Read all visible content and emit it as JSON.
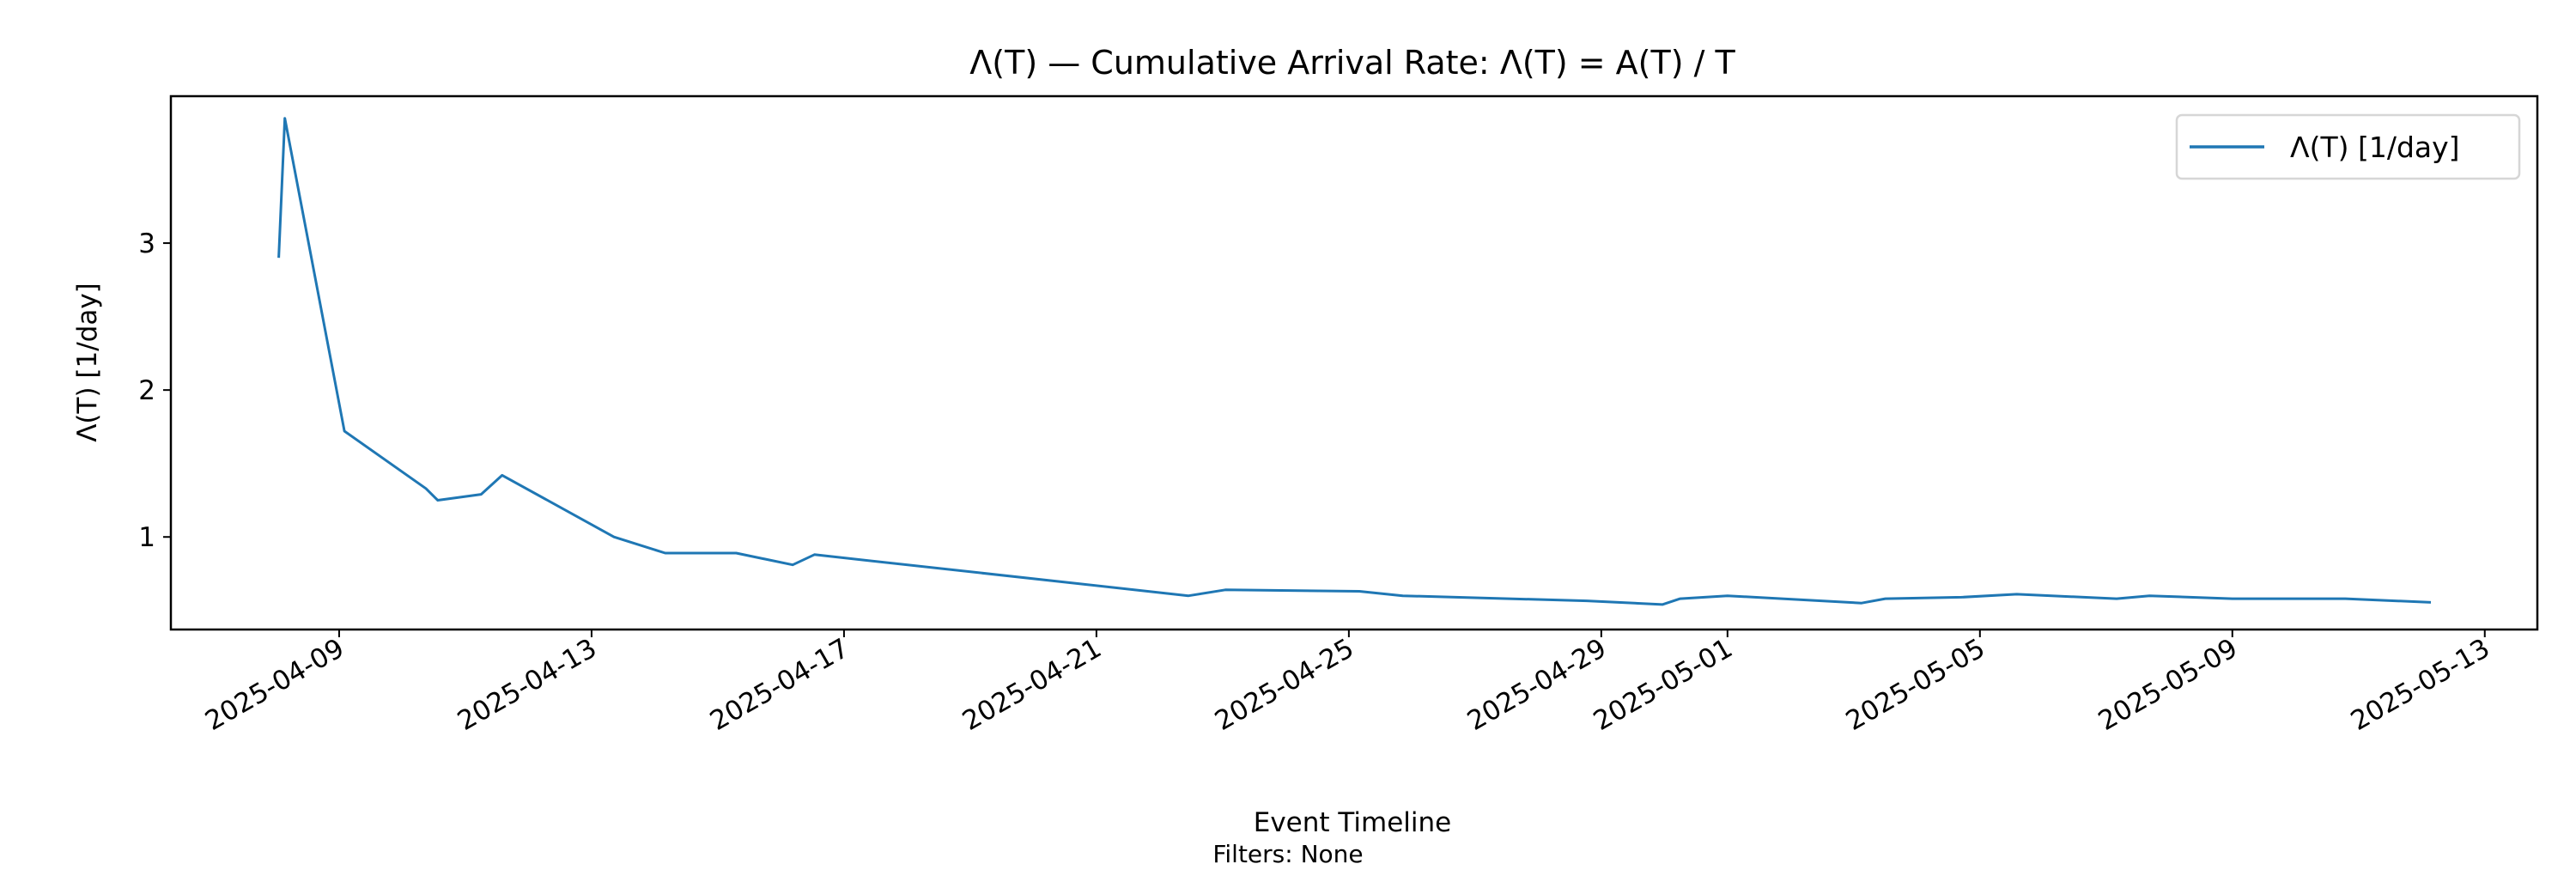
{
  "chart_data": {
    "type": "line",
    "title": "Λ(T) — Cumulative Arrival Rate: Λ(T) = A(T) / T",
    "xlabel": "Event Timeline",
    "ylabel": "Λ(T) [1/day]",
    "footnote": "Filters: None",
    "xlim": [
      "2025-04-06T08:00",
      "2025-05-13T20:00"
    ],
    "ylim": [
      0.37,
      4.0
    ],
    "grid": false,
    "legend_placement": "top-right",
    "x_ticks": [
      "2025-04-09",
      "2025-04-13",
      "2025-04-17",
      "2025-04-21",
      "2025-04-25",
      "2025-04-29",
      "2025-05-01",
      "2025-05-05",
      "2025-05-09",
      "2025-05-13"
    ],
    "y_ticks": [
      1,
      2,
      3
    ],
    "series": [
      {
        "name": "Λ(T) [1/day]",
        "color": "#1f77b4",
        "x": [
          "2025-04-08T01:00",
          "2025-04-08T03:20",
          "2025-04-09T02:00",
          "2025-04-10T09:00",
          "2025-04-10T13:30",
          "2025-04-11T06:00",
          "2025-04-11T14:00",
          "2025-04-13T08:30",
          "2025-04-14T04:00",
          "2025-04-15T07:00",
          "2025-04-16T04:30",
          "2025-04-16T12:45",
          "2025-04-22T11:00",
          "2025-04-23T01:00",
          "2025-04-25T04:00",
          "2025-04-25T20:30",
          "2025-04-28T18:30",
          "2025-04-29T23:15",
          "2025-04-30T06:00",
          "2025-05-01T00:00",
          "2025-05-03T03:00",
          "2025-05-03T12:00",
          "2025-05-04T17:00",
          "2025-05-05T14:00",
          "2025-05-07T04:00",
          "2025-05-07T16:30",
          "2025-05-09T00:00",
          "2025-05-10T19:00",
          "2025-05-12T03:30"
        ],
        "values": [
          2.9,
          3.85,
          1.72,
          1.33,
          1.25,
          1.29,
          1.42,
          1.0,
          0.89,
          0.89,
          0.81,
          0.88,
          0.6,
          0.64,
          0.63,
          0.6,
          0.565,
          0.54,
          0.58,
          0.6,
          0.55,
          0.58,
          0.59,
          0.61,
          0.58,
          0.6,
          0.58,
          0.58,
          0.555
        ]
      }
    ]
  }
}
